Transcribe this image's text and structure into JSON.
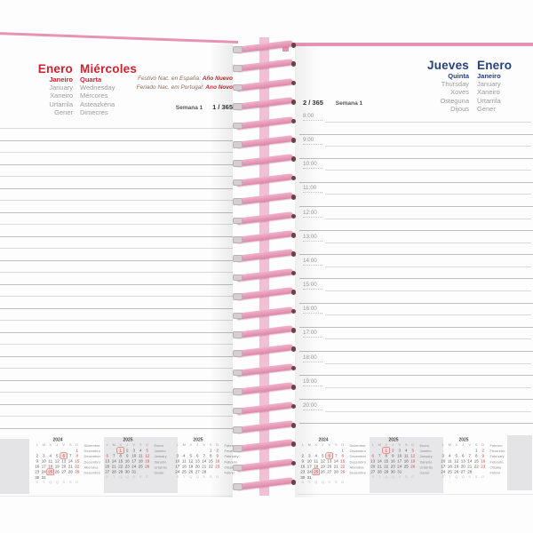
{
  "colors": {
    "spiral_pink": "#e794b4",
    "red_accent": "#cb2430",
    "blue_accent": "#24417c",
    "gray_text": "#9b9b9b",
    "sunday_red": "#d24040",
    "calendar_highlight_bg": "#e7e7e9"
  },
  "left_page": {
    "month": {
      "primary": "Enero",
      "secondary": "Janeiro",
      "others": [
        "January",
        "Xaneiro",
        "Urtarrila",
        "Gener"
      ]
    },
    "day": {
      "primary": "Miércoles",
      "secondary": "Quarta",
      "others": [
        "Wednesday",
        "Mércores",
        "Asteazkena",
        "Dimecres"
      ]
    },
    "holidays": [
      {
        "prefix": "Festivo Nac. en España:",
        "name": "Año Nuevo"
      },
      {
        "prefix": "Feriado Nac. em Portugal:",
        "name": "Ano Novo"
      }
    ],
    "week_label": "Semana 1",
    "day_of_year": "1 / 365",
    "ruled_line_count": 26
  },
  "right_page": {
    "day": {
      "primary": "Jueves",
      "secondary": "Quinta",
      "others": [
        "Thursday",
        "Xoves",
        "Osteguna",
        "Dijous"
      ]
    },
    "month": {
      "primary": "Enero",
      "secondary": "Janeiro",
      "others": [
        "January",
        "Xaneiro",
        "Urtarrila",
        "Gener"
      ]
    },
    "day_of_year": "2 / 365",
    "week_label": "Semana 1",
    "hours": [
      "8:00",
      "9:00",
      "10:00",
      "11:00",
      "12:00",
      "13:00",
      "14:00",
      "15:00",
      "16:00",
      "17:00",
      "18:00",
      "19:00",
      "20:00"
    ]
  },
  "mini_calendars": [
    {
      "year": "2024",
      "day_header": [
        "L",
        "M",
        "X",
        "J",
        "V",
        "S",
        "D"
      ],
      "day_footer": [
        "S",
        "T",
        "Q",
        "Q",
        "S",
        "S",
        "D"
      ],
      "weeks": [
        [
          "",
          "",
          "",
          "",
          "",
          "",
          "1"
        ],
        [
          "2",
          "3",
          "4",
          "5",
          "6",
          "7",
          "8"
        ],
        [
          "9",
          "10",
          "11",
          "12",
          "13",
          "14",
          "15"
        ],
        [
          "16",
          "17",
          "18",
          "19",
          "20",
          "21",
          "22"
        ],
        [
          "23",
          "24",
          "25",
          "26",
          "27",
          "28",
          "29"
        ],
        [
          "30",
          "31",
          "",
          "",
          "",
          "",
          ""
        ]
      ],
      "highlighted": false,
      "boxed_days": [
        6,
        25
      ],
      "red_days": [
        8
      ],
      "month_names": [
        "Diciembre",
        "Dezembro",
        "December",
        "Decembro",
        "Abendua",
        "Desembre"
      ]
    },
    {
      "year": "2025",
      "day_header": [
        "L",
        "M",
        "X",
        "J",
        "V",
        "S",
        "D"
      ],
      "day_footer": [
        "S",
        "T",
        "Q",
        "Q",
        "S",
        "S",
        "D"
      ],
      "weeks": [
        [
          "",
          "",
          "1",
          "2",
          "3",
          "4",
          "5"
        ],
        [
          "6",
          "7",
          "8",
          "9",
          "10",
          "11",
          "12"
        ],
        [
          "13",
          "14",
          "15",
          "16",
          "17",
          "18",
          "19"
        ],
        [
          "20",
          "21",
          "22",
          "23",
          "24",
          "25",
          "26"
        ],
        [
          "27",
          "28",
          "29",
          "30",
          "31",
          "",
          ""
        ]
      ],
      "highlighted": true,
      "boxed_days": [
        1
      ],
      "red_days": [
        6
      ],
      "month_names": [
        "Enero",
        "Janeiro",
        "January",
        "Xaneiro",
        "Urtarrila",
        "Gener"
      ]
    },
    {
      "year": "2025",
      "day_header": [
        "L",
        "M",
        "X",
        "J",
        "V",
        "S",
        "D"
      ],
      "day_footer": [
        "S",
        "T",
        "Q",
        "Q",
        "S",
        "S",
        "D"
      ],
      "weeks": [
        [
          "",
          "",
          "",
          "",
          "",
          "1",
          "2"
        ],
        [
          "3",
          "4",
          "5",
          "6",
          "7",
          "8",
          "9"
        ],
        [
          "10",
          "11",
          "12",
          "13",
          "14",
          "15",
          "16"
        ],
        [
          "17",
          "18",
          "19",
          "20",
          "21",
          "22",
          "23"
        ],
        [
          "24",
          "25",
          "26",
          "27",
          "28",
          "",
          ""
        ]
      ],
      "highlighted": false,
      "boxed_days": [],
      "red_days": [],
      "month_names": [
        "Febrero",
        "Fevereiro",
        "February",
        "Febreiro",
        "Otsaila",
        "Febrer"
      ]
    }
  ]
}
